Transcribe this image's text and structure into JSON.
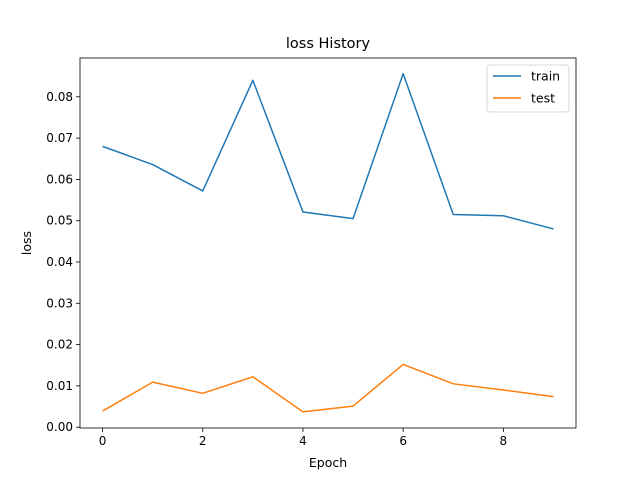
{
  "chart_data": {
    "type": "line",
    "title": "loss History",
    "xlabel": "Epoch",
    "ylabel": "loss",
    "x": [
      0,
      1,
      2,
      3,
      4,
      5,
      6,
      7,
      8,
      9
    ],
    "xlim": [
      -0.45,
      9.45
    ],
    "ylim": [
      -0.0002,
      0.0894
    ],
    "xticks": [
      0,
      2,
      4,
      6,
      8
    ],
    "xtick_labels": [
      "0",
      "2",
      "4",
      "6",
      "8"
    ],
    "yticks": [
      0.0,
      0.01,
      0.02,
      0.03,
      0.04,
      0.05,
      0.06,
      0.07,
      0.08
    ],
    "ytick_labels": [
      "0.00",
      "0.01",
      "0.02",
      "0.03",
      "0.04",
      "0.05",
      "0.06",
      "0.07",
      "0.08"
    ],
    "grid": false,
    "legend_position": "top-right",
    "series": [
      {
        "name": "train",
        "color": "#1f77b4",
        "values": [
          0.068,
          0.0636,
          0.0572,
          0.084,
          0.0521,
          0.0505,
          0.0856,
          0.0515,
          0.0512,
          0.048
        ]
      },
      {
        "name": "test",
        "color": "#ff7f0e",
        "values": [
          0.0039,
          0.0109,
          0.0082,
          0.0122,
          0.0037,
          0.0051,
          0.0152,
          0.0105,
          0.009,
          0.0074
        ]
      }
    ]
  }
}
